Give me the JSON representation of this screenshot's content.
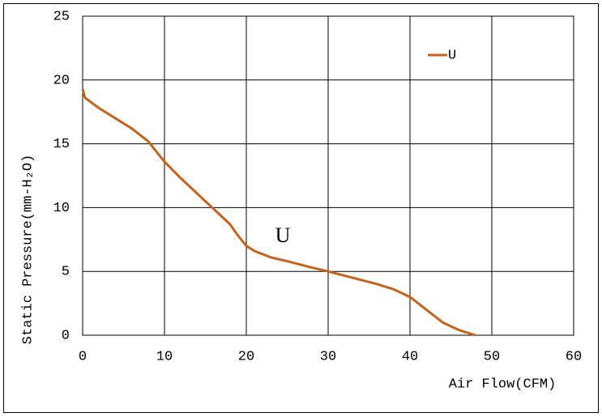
{
  "chart_data": {
    "type": "line",
    "x": [
      0,
      0.3,
      2,
      4,
      6,
      8,
      10,
      12,
      14,
      16,
      18,
      19,
      20,
      21,
      23,
      25,
      28,
      30,
      33,
      36,
      38,
      40,
      42,
      44,
      46,
      48
    ],
    "series": [
      {
        "name": "U",
        "color": "#c8621a",
        "values": [
          19.3,
          18.6,
          17.8,
          17.0,
          16.2,
          15.2,
          13.6,
          12.3,
          11.1,
          9.9,
          8.7,
          7.8,
          7.0,
          6.6,
          6.1,
          5.8,
          5.3,
          5.0,
          4.5,
          4.0,
          3.6,
          3.0,
          2.0,
          1.0,
          0.4,
          0
        ]
      }
    ],
    "xlabel": "Air Flow(CFM)",
    "ylabel": "Static Pressure(mm-H₂O)",
    "annotations": [
      "U"
    ],
    "xlim": [
      0,
      60
    ],
    "xticks": [
      0,
      10,
      20,
      30,
      40,
      50,
      60
    ],
    "ylim": [
      0,
      25
    ],
    "yticks": [
      0,
      5,
      10,
      15,
      20,
      25
    ],
    "grid": true,
    "legend": "upper right"
  }
}
